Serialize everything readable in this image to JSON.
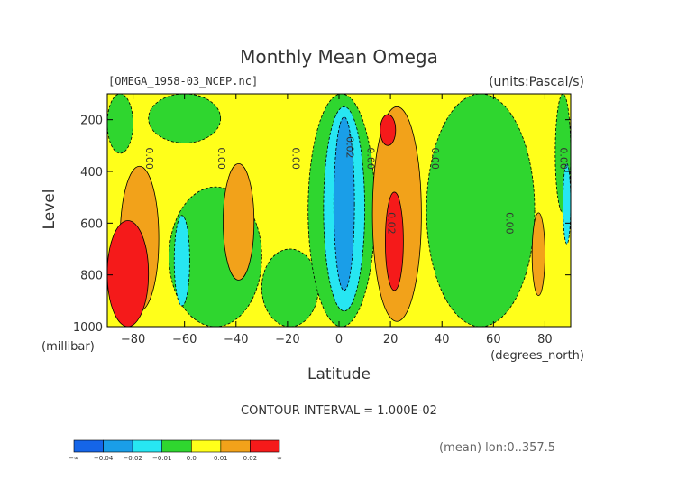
{
  "chart_data": {
    "type": "heatmap",
    "title": "Monthly Mean Omega",
    "file_label": "[OMEGA_1958-03_NCEP.nc]",
    "units_label": "(units:Pascal/s)",
    "xlabel": "Latitude",
    "x_unit_label": "(degrees_north)",
    "ylabel": "Level",
    "y_unit_label": "(millibar)",
    "xlim": [
      -90,
      90
    ],
    "ylim": [
      1000,
      100
    ],
    "x_ticks": [
      -80,
      -60,
      -40,
      -20,
      0,
      20,
      40,
      60,
      80
    ],
    "y_ticks": [
      200,
      400,
      600,
      800,
      1000
    ],
    "contour_interval": "CONTOUR INTERVAL = 1.000E-02",
    "mean_note": "(mean) lon:0..357.5",
    "colorbar": {
      "colors": [
        "#1565e8",
        "#1a9ee8",
        "#27e6f2",
        "#2fd62f",
        "#ffff1a",
        "#f2a21a",
        "#f51a1a"
      ],
      "labels": [
        "-∞",
        "-0.04",
        "-0.02",
        "-0.01",
        "0.0",
        "0.01",
        "0.02",
        "∞"
      ]
    },
    "regions": [
      {
        "value": "0.0..0.01",
        "color": "#ffff1a",
        "x": [
          -90,
          90
        ],
        "y": [
          100,
          1000
        ]
      },
      {
        "value": "-0.01..0.0",
        "color": "#2fd62f",
        "x": [
          -90,
          -80
        ],
        "y": [
          100,
          330
        ]
      },
      {
        "value": "-0.01..0.0",
        "color": "#2fd62f",
        "x": [
          -74,
          -46
        ],
        "y": [
          100,
          290
        ]
      },
      {
        "value": "-0.01..0.0",
        "color": "#2fd62f",
        "x": [
          -66,
          -30
        ],
        "y": [
          460,
          1000
        ]
      },
      {
        "value": "-0.01..0.0",
        "color": "#2fd62f",
        "x": [
          -30,
          -8
        ],
        "y": [
          700,
          1000
        ]
      },
      {
        "value": "-0.01..0.0",
        "color": "#2fd62f",
        "x": [
          -12,
          14
        ],
        "y": [
          100,
          1000
        ]
      },
      {
        "value": "-0.01..0.0",
        "color": "#2fd62f",
        "x": [
          34,
          76
        ],
        "y": [
          100,
          1000
        ]
      },
      {
        "value": "-0.01..0.0",
        "color": "#2fd62f",
        "x": [
          84,
          90
        ],
        "y": [
          100,
          560
        ]
      },
      {
        "value": "-0.02..-0.01",
        "color": "#27e6f2",
        "x": [
          -64,
          -58
        ],
        "y": [
          570,
          920
        ]
      },
      {
        "value": "-0.02..-0.01",
        "color": "#27e6f2",
        "x": [
          -6,
          10
        ],
        "y": [
          150,
          940
        ]
      },
      {
        "value": "-0.02..-0.01",
        "color": "#27e6f2",
        "x": [
          87,
          90
        ],
        "y": [
          370,
          680
        ]
      },
      {
        "value": "-0.04..-0.02",
        "color": "#1a9ee8",
        "x": [
          -2,
          6
        ],
        "y": [
          190,
          860
        ]
      },
      {
        "value": "0.01..0.02",
        "color": "#f2a21a",
        "x": [
          -85,
          -70
        ],
        "y": [
          380,
          940
        ]
      },
      {
        "value": "0.01..0.02",
        "color": "#f2a21a",
        "x": [
          -45,
          -33
        ],
        "y": [
          370,
          820
        ]
      },
      {
        "value": "0.01..0.02",
        "color": "#f2a21a",
        "x": [
          13,
          32
        ],
        "y": [
          150,
          980
        ]
      },
      {
        "value": "0.01..0.02",
        "color": "#f2a21a",
        "x": [
          75,
          80
        ],
        "y": [
          560,
          880
        ]
      },
      {
        "value": "> 0.02",
        "color": "#f51a1a",
        "x": [
          -90,
          -74
        ],
        "y": [
          590,
          1000
        ]
      },
      {
        "value": "> 0.02",
        "color": "#f51a1a",
        "x": [
          16,
          22
        ],
        "y": [
          180,
          300
        ]
      },
      {
        "value": "> 0.02",
        "color": "#f51a1a",
        "x": [
          18,
          25
        ],
        "y": [
          480,
          860
        ]
      }
    ],
    "contour_labels": [
      {
        "text": "0.00",
        "x": -75,
        "y": 350
      },
      {
        "text": "0.00",
        "x": -47,
        "y": 350
      },
      {
        "text": "0.00",
        "x": -18,
        "y": 350
      },
      {
        "text": "-0.02",
        "x": 3,
        "y": 300
      },
      {
        "text": "0.00",
        "x": 11,
        "y": 350
      },
      {
        "text": "0.02",
        "x": 19,
        "y": 600
      },
      {
        "text": "0.00",
        "x": 36,
        "y": 350
      },
      {
        "text": "0.00",
        "x": 65,
        "y": 600
      },
      {
        "text": "0.00",
        "x": 86,
        "y": 350
      }
    ]
  }
}
